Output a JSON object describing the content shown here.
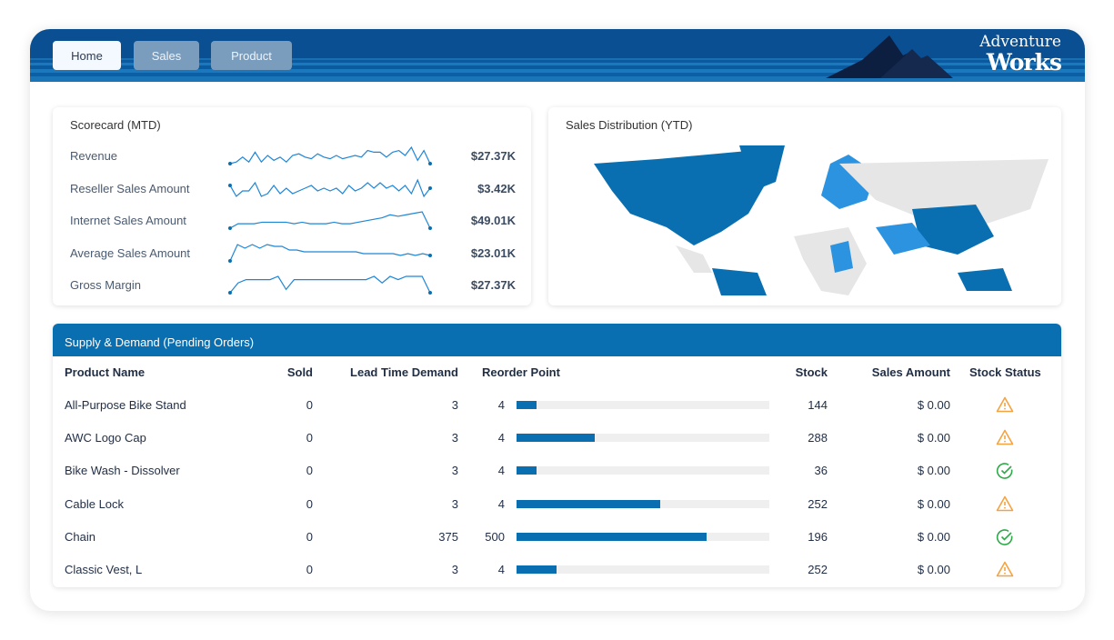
{
  "nav": {
    "tabs": [
      {
        "label": "Home",
        "active": true
      },
      {
        "label": "Sales",
        "active": false
      },
      {
        "label": "Product",
        "active": false
      }
    ]
  },
  "brand": {
    "line1": "Adventure",
    "line2": "Works"
  },
  "scorecard": {
    "title": "Scorecard (MTD)",
    "rows": [
      {
        "label": "Revenue",
        "value": "$27.37K",
        "spark": [
          2,
          3,
          6,
          3,
          9,
          3,
          7,
          4,
          6,
          3,
          7,
          8,
          6,
          5,
          8,
          6,
          5,
          7,
          5,
          6,
          7,
          6,
          10,
          9,
          9,
          6,
          9,
          10,
          7,
          12,
          4,
          10,
          2
        ]
      },
      {
        "label": "Reseller Sales Amount",
        "value": "$3.42K",
        "spark": [
          7,
          3,
          5,
          5,
          8,
          3,
          4,
          7,
          4,
          6,
          4,
          5,
          6,
          7,
          5,
          6,
          5,
          6,
          4,
          7,
          5,
          6,
          8,
          6,
          8,
          6,
          7,
          5,
          7,
          4,
          9,
          3,
          6
        ]
      },
      {
        "label": "Internet Sales Amount",
        "value": "$49.01K",
        "spark": [
          1,
          4,
          4,
          4,
          5,
          5,
          5,
          5,
          4,
          5,
          4,
          4,
          4,
          5,
          4,
          4,
          5,
          6,
          7,
          8,
          10,
          9,
          10,
          11,
          12,
          1
        ]
      },
      {
        "label": "Average Sales Amount",
        "value": "$23.01K",
        "spark": [
          1,
          10,
          8,
          10,
          8,
          10,
          9,
          9,
          7,
          7,
          6,
          6,
          6,
          6,
          6,
          6,
          6,
          6,
          5,
          5,
          5,
          5,
          5,
          4,
          5,
          4,
          5,
          4
        ]
      },
      {
        "label": "Gross Margin",
        "value": "$27.37K",
        "spark": [
          1,
          4,
          5,
          5,
          5,
          5,
          6,
          2,
          5,
          5,
          5,
          5,
          5,
          5,
          5,
          5,
          5,
          5,
          6,
          4,
          6,
          5,
          6,
          6,
          6,
          1
        ]
      }
    ]
  },
  "map": {
    "title": "Sales Distribution (YTD)",
    "colors": {
      "high": "#0a6fb0",
      "mid": "#2b93df",
      "low": "#e6e6e6"
    }
  },
  "supply": {
    "title": "Supply & Demand (Pending Orders)",
    "headers": {
      "product": "Product Name",
      "sold": "Sold",
      "lead": "Lead Time Demand",
      "reorder": "Reorder Point",
      "stock": "Stock",
      "sales": "Sales Amount",
      "status": "Stock Status"
    },
    "rows": [
      {
        "product": "All-Purpose Bike Stand",
        "sold": "0",
        "lead": "3",
        "reorder": "4",
        "bar": 0.08,
        "stock": "144",
        "sales": "$ 0.00",
        "status": "warning"
      },
      {
        "product": "AWC Logo Cap",
        "sold": "0",
        "lead": "3",
        "reorder": "4",
        "bar": 0.31,
        "stock": "288",
        "sales": "$ 0.00",
        "status": "warning"
      },
      {
        "product": "Bike Wash - Dissolver",
        "sold": "0",
        "lead": "3",
        "reorder": "4",
        "bar": 0.08,
        "stock": "36",
        "sales": "$ 0.00",
        "status": "ok"
      },
      {
        "product": "Cable Lock",
        "sold": "0",
        "lead": "3",
        "reorder": "4",
        "bar": 0.57,
        "stock": "252",
        "sales": "$ 0.00",
        "status": "warning"
      },
      {
        "product": "Chain",
        "sold": "0",
        "lead": "375",
        "reorder": "500",
        "bar": 0.75,
        "stock": "196",
        "sales": "$ 0.00",
        "status": "ok"
      },
      {
        "product": "Classic Vest, L",
        "sold": "0",
        "lead": "3",
        "reorder": "4",
        "bar": 0.16,
        "stock": "252",
        "sales": "$ 0.00",
        "status": "warning"
      }
    ]
  }
}
